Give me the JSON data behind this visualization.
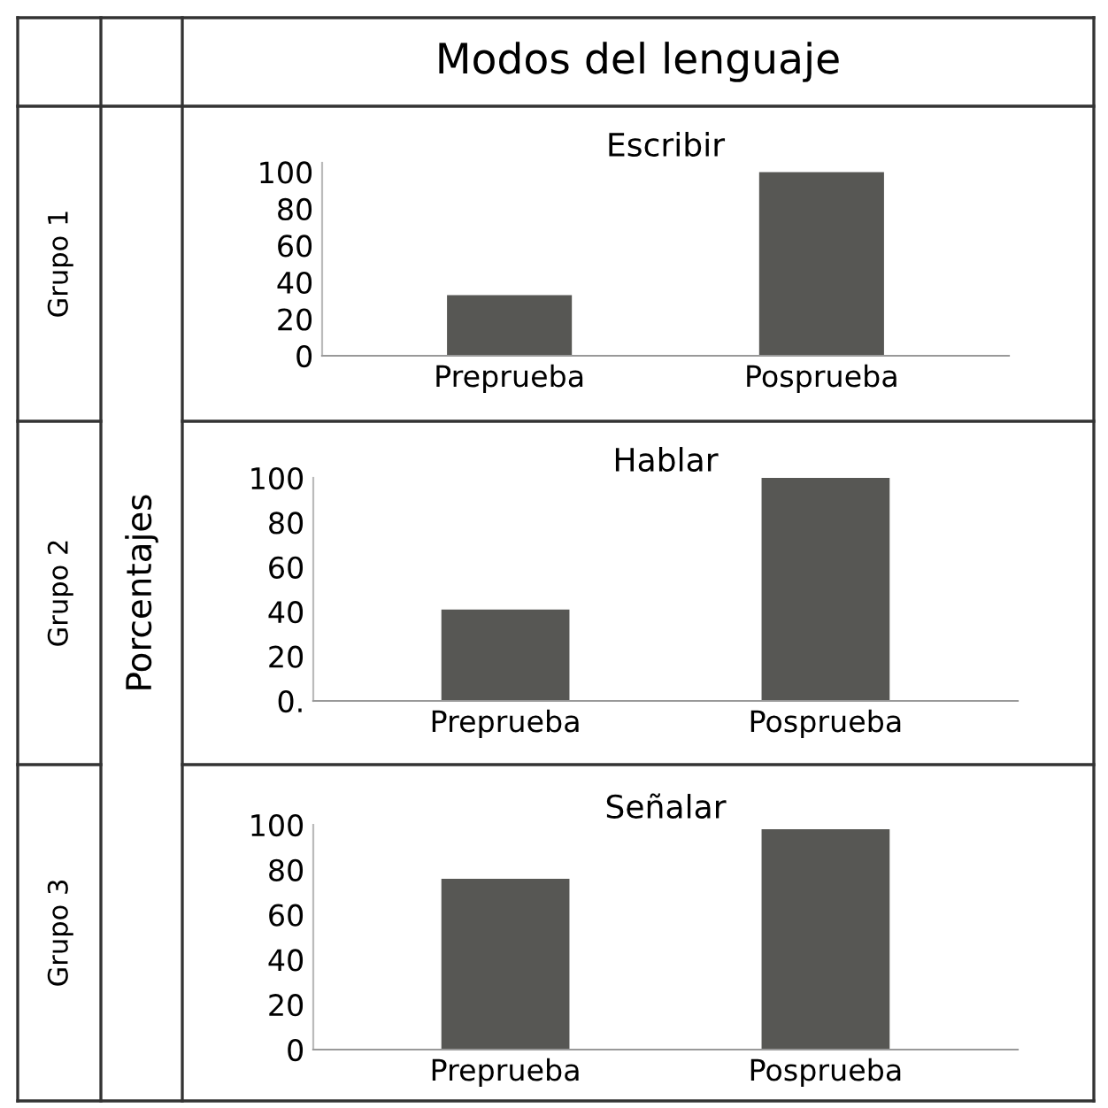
{
  "chart_data": [
    {
      "type": "bar",
      "title": "Escribir",
      "ylabel": "Porcentajes",
      "annotations": [
        "Modos del lenguaje",
        "Grupo 1"
      ],
      "categories": [
        "Preprueba",
        "Posprueba"
      ],
      "values": [
        33,
        100
      ],
      "color": "#575754",
      "ylim": [
        0,
        105
      ],
      "yticks": [
        0,
        20,
        40,
        60,
        80,
        100
      ],
      "grid": false,
      "legend": false
    },
    {
      "type": "bar",
      "title": "Hablar",
      "annotations": [
        "Grupo 2"
      ],
      "categories": [
        "Preprueba",
        "Posprueba"
      ],
      "values": [
        41,
        100
      ],
      "color": "#575754",
      "ylim": [
        0,
        100
      ],
      "yticks": [
        {
          "value": 0,
          "label": "0."
        },
        20,
        40,
        60,
        80,
        100
      ],
      "grid": false,
      "legend": false
    },
    {
      "type": "bar",
      "title": "Señalar",
      "annotations": [
        "Grupo 3"
      ],
      "categories": [
        "Preprueba",
        "Posprueba"
      ],
      "values": [
        76,
        98
      ],
      "color": "#575754",
      "ylim": [
        0,
        100
      ],
      "yticks": [
        0,
        20,
        40,
        60,
        80,
        100
      ],
      "grid": false,
      "legend": false
    }
  ]
}
